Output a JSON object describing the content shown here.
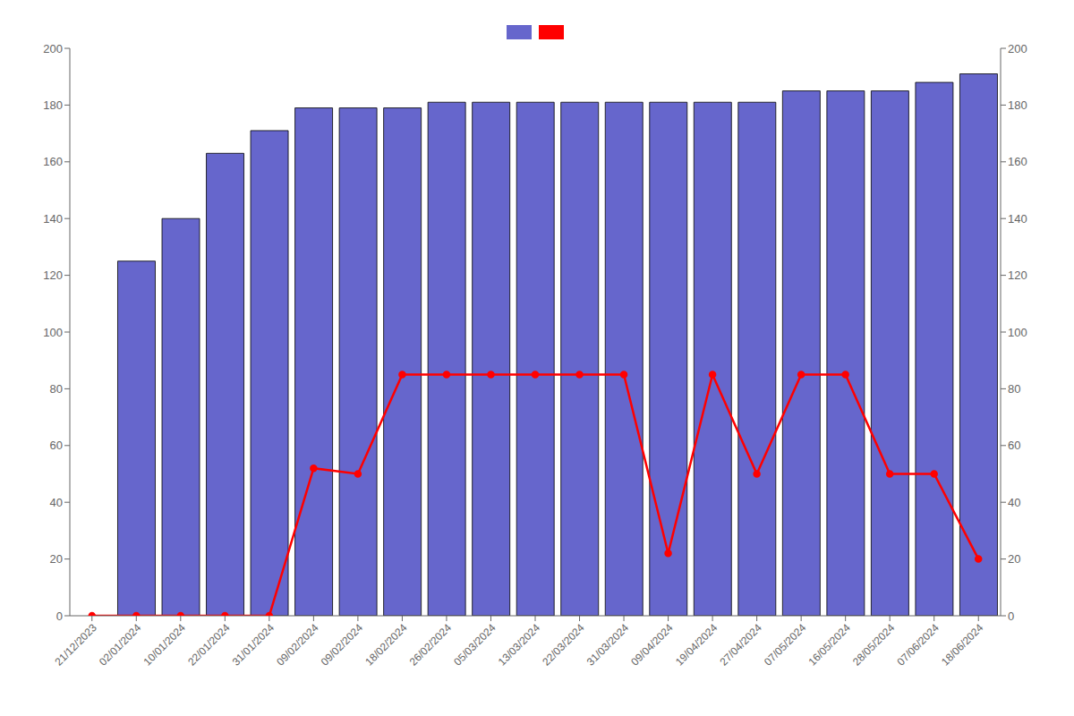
{
  "chart_data": {
    "type": "bar",
    "categories": [
      "21/12/2023",
      "02/01/2024",
      "10/01/2024",
      "22/01/2024",
      "31/01/2024",
      "09/02/2024",
      "09/02/2024",
      "18/02/2024",
      "26/02/2024",
      "05/03/2024",
      "13/03/2024",
      "22/03/2024",
      "31/03/2024",
      "09/04/2024",
      "19/04/2024",
      "27/04/2024",
      "07/05/2024",
      "16/05/2024",
      "28/05/2024",
      "07/06/2024",
      "18/06/2024"
    ],
    "series": [
      {
        "type": "bar",
        "color": "#6666cc",
        "values": [
          0,
          125,
          140,
          163,
          171,
          179,
          179,
          179,
          181,
          181,
          181,
          181,
          181,
          181,
          181,
          181,
          185,
          185,
          185,
          188,
          191
        ]
      },
      {
        "type": "line",
        "color": "#ff0000",
        "marker": "circle",
        "values": [
          0,
          0,
          0,
          0,
          0,
          52,
          50,
          85,
          85,
          85,
          85,
          85,
          85,
          22,
          85,
          50,
          85,
          85,
          50,
          50,
          20
        ]
      }
    ],
    "ylim": [
      0,
      200
    ],
    "yticks": [
      0,
      20,
      40,
      60,
      80,
      100,
      120,
      140,
      160,
      180,
      200
    ],
    "y2lim": [
      0,
      200
    ],
    "y2ticks": [
      0,
      20,
      40,
      60,
      80,
      100,
      120,
      140,
      160,
      180,
      200
    ],
    "grid": false,
    "legend": "top"
  }
}
